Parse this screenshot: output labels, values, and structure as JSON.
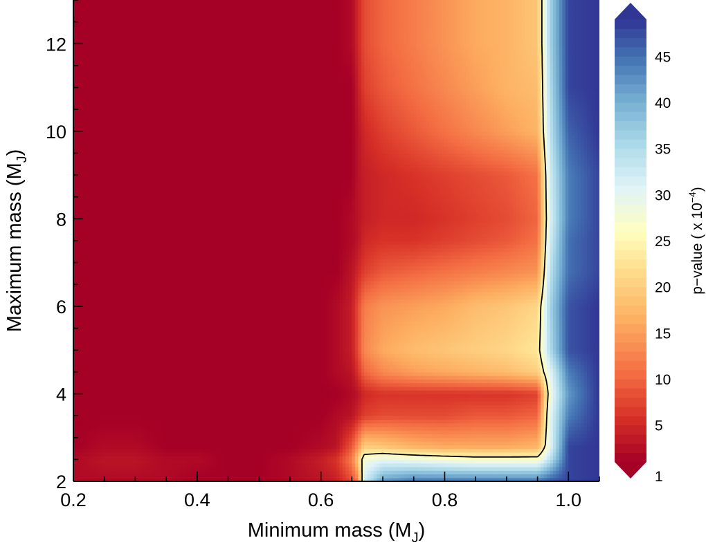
{
  "chart_data": {
    "type": "heatmap",
    "xlabel": "Minimum mass (M",
    "xlabel_sub": "J",
    "xlabel_end": ")",
    "ylabel": "Maximum mass (M",
    "ylabel_sub": "J",
    "ylabel_end": ")",
    "xlim": [
      0.2,
      1.05
    ],
    "ylim": [
      2,
      13
    ],
    "xticks": [
      0.2,
      0.4,
      0.6,
      0.8,
      1.0
    ],
    "xtick_labels": [
      "0.2",
      "0.4",
      "0.6",
      "0.8",
      "1.0"
    ],
    "yticks": [
      2,
      4,
      6,
      8,
      10,
      12
    ],
    "ytick_labels": [
      "2",
      "4",
      "6",
      "8",
      "10",
      "12"
    ],
    "colorbar": {
      "label": "p−value ( x 10",
      "label_exp": "−4",
      "label_end": ")",
      "range": [
        1,
        49
      ],
      "extend": "both",
      "ticks": [
        1,
        5,
        10,
        15,
        20,
        25,
        30,
        35,
        40,
        45
      ],
      "tick_labels": [
        "1",
        "5",
        "10",
        "15",
        "20",
        "25",
        "30",
        "35",
        "40",
        "45"
      ],
      "colormap": "RdYlBu"
    },
    "contour_level": 25,
    "x": [
      0.2,
      0.25,
      0.3,
      0.35,
      0.4,
      0.45,
      0.5,
      0.55,
      0.6,
      0.625,
      0.65,
      0.66,
      0.67,
      0.7,
      0.75,
      0.8,
      0.85,
      0.9,
      0.95,
      0.97,
      1.0,
      1.05
    ],
    "y": [
      2,
      2.5,
      2.8,
      3.5,
      4,
      4.5,
      5,
      6,
      6.8,
      7.5,
      8,
      9,
      10,
      11,
      12,
      13
    ],
    "z": [
      [
        2,
        2,
        2,
        2,
        1,
        1,
        1,
        2,
        3,
        4,
        8,
        12,
        32,
        42,
        45,
        45,
        45,
        45,
        45,
        47,
        48,
        49
      ],
      [
        2,
        3,
        3,
        2,
        2,
        1,
        1,
        2,
        4,
        6,
        12,
        20,
        28,
        30,
        29,
        28,
        27,
        27,
        27,
        34,
        48,
        49
      ],
      [
        1,
        2,
        2,
        1,
        1,
        1,
        1,
        1,
        2,
        3,
        9,
        14,
        20,
        19,
        17,
        16,
        16,
        16,
        17,
        30,
        48,
        49
      ],
      [
        1,
        1,
        1,
        1,
        1,
        1,
        1,
        1,
        1,
        2,
        3,
        5,
        7,
        8,
        8,
        8,
        9,
        9,
        10,
        30,
        44,
        49
      ],
      [
        1,
        1,
        1,
        1,
        1,
        1,
        1,
        1,
        1,
        1,
        2,
        3,
        5,
        6,
        6,
        6,
        6,
        6,
        7,
        28,
        42,
        49
      ],
      [
        1,
        1,
        1,
        1,
        1,
        1,
        1,
        1,
        1,
        2,
        3,
        6,
        10,
        13,
        15,
        16,
        17,
        18,
        20,
        30,
        44,
        49
      ],
      [
        1,
        1,
        1,
        1,
        1,
        1,
        1,
        1,
        1,
        2,
        4,
        8,
        13,
        16,
        18,
        19,
        20,
        21,
        23,
        35,
        47,
        49
      ],
      [
        1,
        1,
        1,
        1,
        1,
        1,
        1,
        1,
        1,
        2,
        4,
        8,
        12,
        14,
        15,
        16,
        18,
        19,
        21,
        36,
        47,
        49
      ],
      [
        1,
        1,
        1,
        1,
        1,
        1,
        1,
        1,
        1,
        1,
        3,
        5,
        7,
        9,
        10,
        11,
        12,
        13,
        14,
        34,
        45,
        48
      ],
      [
        1,
        1,
        1,
        1,
        1,
        1,
        1,
        1,
        1,
        1,
        2,
        3,
        5,
        6,
        6,
        7,
        8,
        9,
        11,
        32,
        45,
        48
      ],
      [
        1,
        1,
        1,
        1,
        1,
        1,
        1,
        1,
        1,
        1,
        2,
        3,
        4,
        5,
        5,
        6,
        7,
        8,
        10,
        31,
        44,
        48
      ],
      [
        1,
        1,
        1,
        1,
        1,
        1,
        1,
        1,
        1,
        1,
        1,
        3,
        4,
        5,
        6,
        7,
        8,
        9,
        11,
        32,
        44,
        48
      ],
      [
        1,
        1,
        1,
        1,
        1,
        1,
        1,
        1,
        1,
        1,
        1,
        3,
        5,
        7,
        9,
        11,
        13,
        15,
        17,
        34,
        46,
        49
      ],
      [
        1,
        1,
        1,
        1,
        1,
        1,
        1,
        1,
        1,
        1,
        1,
        4,
        7,
        9,
        11,
        13,
        15,
        17,
        18,
        35,
        48,
        49
      ],
      [
        1,
        1,
        1,
        1,
        1,
        1,
        1,
        1,
        1,
        1,
        2,
        5,
        8,
        10,
        12,
        14,
        16,
        17,
        19,
        36,
        48,
        49
      ],
      [
        1,
        1,
        1,
        1,
        1,
        1,
        1,
        1,
        1,
        1,
        2,
        5,
        8,
        10,
        12,
        14,
        16,
        17,
        19,
        36,
        48,
        49
      ]
    ]
  }
}
